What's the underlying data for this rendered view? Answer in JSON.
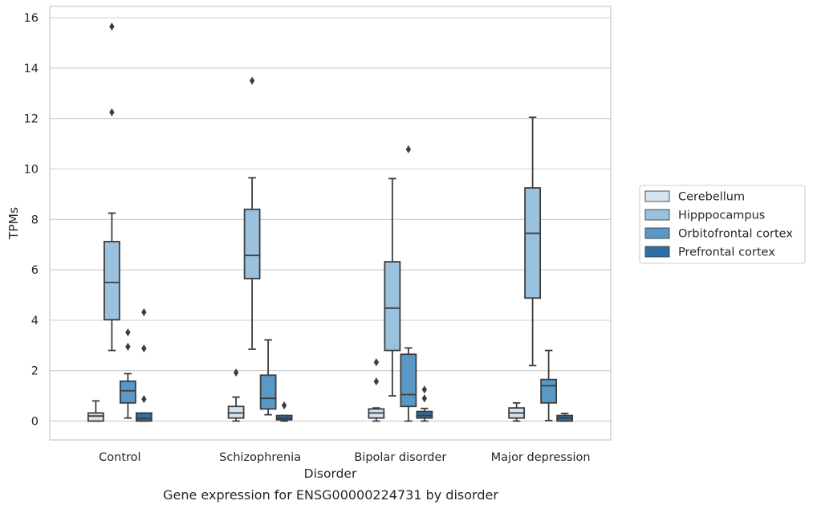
{
  "chart_data": {
    "type": "box",
    "caption": "Gene expression for ENSG00000224731 by disorder",
    "xlabel": "Disorder",
    "ylabel": "TPMs",
    "ylim": [
      -0.75,
      16.45
    ],
    "yticks": [
      0,
      2,
      4,
      6,
      8,
      10,
      12,
      14,
      16
    ],
    "grid": "horizontal",
    "legend_position": "right",
    "categories": [
      "Control",
      "Schizophrenia",
      "Bipolar disorder",
      "Major depression"
    ],
    "series": [
      {
        "name": "Cerebellum",
        "color": "#d4e4f1",
        "boxes": [
          {
            "low": 0.0,
            "q1": 0.0,
            "median": 0.2,
            "q3": 0.32,
            "high": 0.8,
            "outliers": []
          },
          {
            "low": 0.0,
            "q1": 0.12,
            "median": 0.32,
            "q3": 0.58,
            "high": 0.95,
            "outliers": [
              1.92
            ]
          },
          {
            "low": 0.0,
            "q1": 0.12,
            "median": 0.32,
            "q3": 0.48,
            "high": 0.52,
            "outliers": [
              2.33,
              1.57
            ]
          },
          {
            "low": 0.0,
            "q1": 0.12,
            "median": 0.32,
            "q3": 0.52,
            "high": 0.72,
            "outliers": []
          }
        ]
      },
      {
        "name": "Hipppocampus",
        "color": "#9ac1de",
        "boxes": [
          {
            "low": 2.8,
            "q1": 4.02,
            "median": 5.5,
            "q3": 7.12,
            "high": 8.25,
            "outliers": [
              15.65,
              12.25
            ]
          },
          {
            "low": 2.85,
            "q1": 5.65,
            "median": 6.57,
            "q3": 8.4,
            "high": 9.65,
            "outliers": [
              13.5
            ]
          },
          {
            "low": 1.0,
            "q1": 2.8,
            "median": 4.48,
            "q3": 6.32,
            "high": 9.62,
            "outliers": []
          },
          {
            "low": 2.2,
            "q1": 4.88,
            "median": 7.45,
            "q3": 9.25,
            "high": 12.05,
            "outliers": []
          }
        ]
      },
      {
        "name": "Orbitofrontal cortex",
        "color": "#5a98c6",
        "boxes": [
          {
            "low": 0.12,
            "q1": 0.72,
            "median": 1.2,
            "q3": 1.58,
            "high": 1.88,
            "outliers": [
              3.52,
              2.95
            ]
          },
          {
            "low": 0.25,
            "q1": 0.48,
            "median": 0.9,
            "q3": 1.82,
            "high": 3.22,
            "outliers": []
          },
          {
            "low": 0.0,
            "q1": 0.58,
            "median": 1.05,
            "q3": 2.65,
            "high": 2.9,
            "outliers": [
              10.78
            ]
          },
          {
            "low": 0.02,
            "q1": 0.72,
            "median": 1.4,
            "q3": 1.65,
            "high": 2.8,
            "outliers": []
          }
        ]
      },
      {
        "name": "Prefrontal cortex",
        "color": "#2d6ea8",
        "boxes": [
          {
            "low": 0.0,
            "q1": 0.0,
            "median": 0.1,
            "q3": 0.32,
            "high": 0.32,
            "outliers": [
              4.32,
              2.88,
              0.87
            ]
          },
          {
            "low": 0.0,
            "q1": 0.05,
            "median": 0.12,
            "q3": 0.22,
            "high": 0.22,
            "outliers": [
              0.62
            ]
          },
          {
            "low": 0.0,
            "q1": 0.12,
            "median": 0.22,
            "q3": 0.38,
            "high": 0.5,
            "outliers": [
              1.25,
              0.9
            ]
          },
          {
            "low": 0.0,
            "q1": 0.0,
            "median": 0.12,
            "q3": 0.22,
            "high": 0.3,
            "outliers": []
          }
        ]
      }
    ]
  }
}
